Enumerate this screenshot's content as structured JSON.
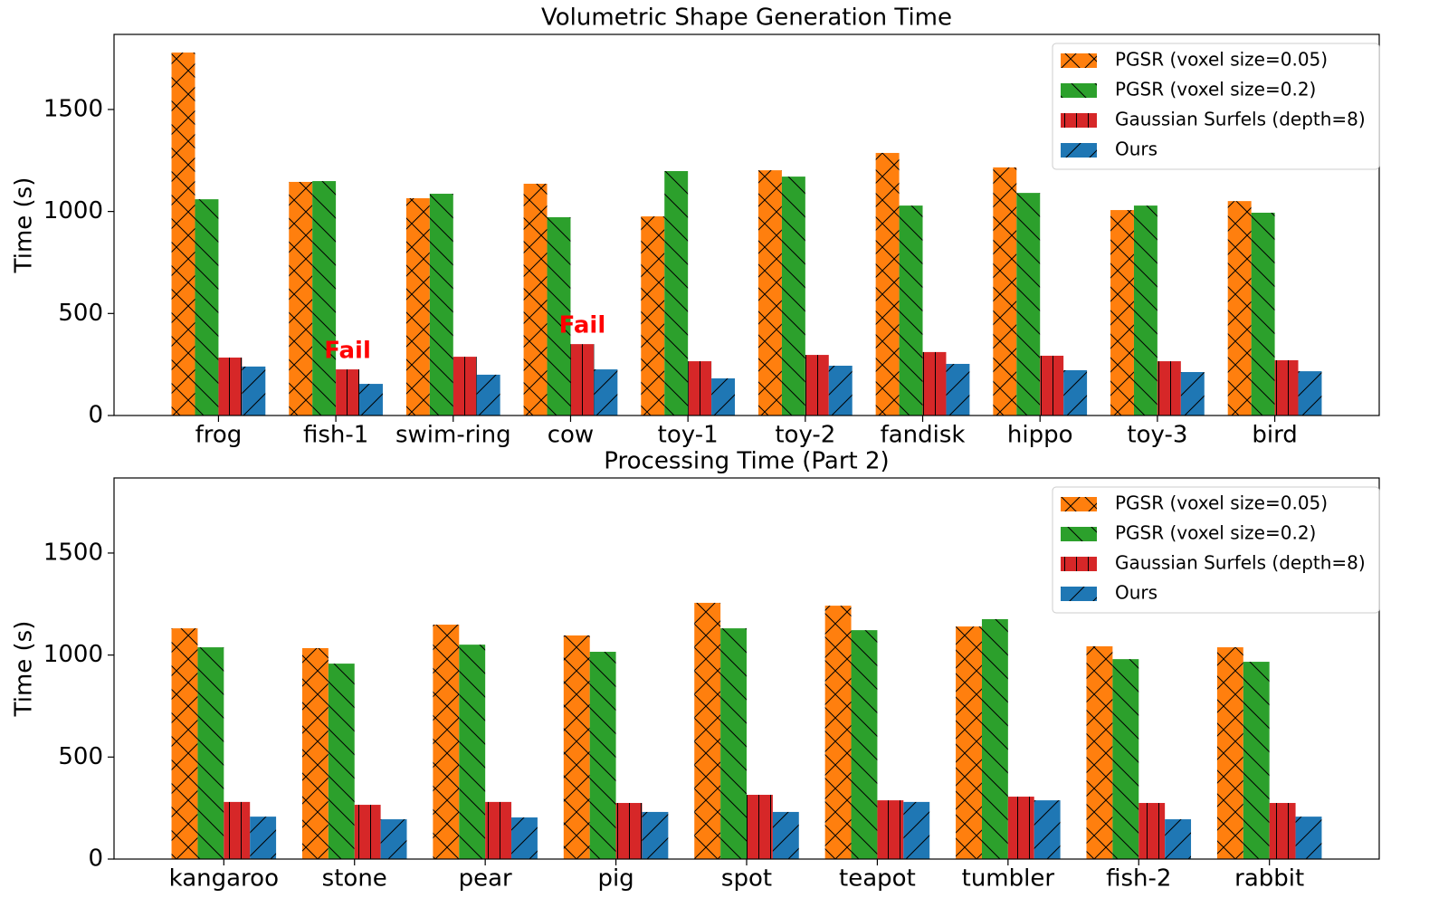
{
  "chart_data": [
    {
      "type": "bar",
      "title": "Volumetric Shape Generation Time",
      "y_label": "Time (s)",
      "categories": [
        "frog",
        "fish-1",
        "swim-ring",
        "cow",
        "toy-1",
        "toy-2",
        "fandisk",
        "hippo",
        "toy-3",
        "bird"
      ],
      "series": [
        {
          "name": "PGSR (voxel size=0.05)",
          "color": "#ff7f0e",
          "hatch": "x",
          "values": [
            1779,
            1145,
            1065,
            1136,
            976,
            1202,
            1287,
            1216,
            1007,
            1051
          ]
        },
        {
          "name": "PGSR (voxel size=0.2)",
          "color": "#2ca02c",
          "hatch": "\\",
          "values": [
            1060,
            1149,
            1087,
            972,
            1198,
            1171,
            1029,
            1091,
            1029,
            994
          ]
        },
        {
          "name": "Gaussian Surfels (depth=8)",
          "color": "#d62728",
          "hatch": "|",
          "values": [
            284,
            226,
            288,
            350,
            266,
            297,
            311,
            293,
            266,
            271
          ]
        },
        {
          "name": "Ours",
          "color": "#1f77b4",
          "hatch": "/",
          "values": [
            240,
            155,
            200,
            226,
            182,
            244,
            253,
            222,
            213,
            217
          ]
        }
      ],
      "annotations": [
        {
          "text": "Fail",
          "x": "fish-1",
          "series": "Gaussian Surfels (depth=8)",
          "color": "#ff0000"
        },
        {
          "text": "Fail",
          "x": "cow",
          "series": "Gaussian Surfels (depth=8)",
          "color": "#ff0000"
        }
      ],
      "ylim": [
        0,
        1868
      ],
      "yticks": [
        0,
        500,
        1000,
        1500
      ],
      "legend": "upper right"
    },
    {
      "type": "bar",
      "title": "Processing Time (Part 2)",
      "y_label": "Time (s)",
      "categories": [
        "kangaroo",
        "stone",
        "pear",
        "pig",
        "spot",
        "teapot",
        "tumbler",
        "fish-2",
        "rabbit"
      ],
      "series": [
        {
          "name": "PGSR (voxel size=0.05)",
          "color": "#ff7f0e",
          "hatch": "x",
          "values": [
            1131,
            1034,
            1149,
            1096,
            1256,
            1242,
            1140,
            1043,
            1038
          ]
        },
        {
          "name": "PGSR (voxel size=0.2)",
          "color": "#2ca02c",
          "hatch": "\\",
          "values": [
            1038,
            958,
            1051,
            1016,
            1131,
            1122,
            1176,
            980,
            967
          ]
        },
        {
          "name": "Gaussian Surfels (depth=8)",
          "color": "#d62728",
          "hatch": "|",
          "values": [
            280,
            266,
            280,
            275,
            315,
            288,
            306,
            275,
            275
          ]
        },
        {
          "name": "Ours",
          "color": "#1f77b4",
          "hatch": "/",
          "values": [
            208,
            195,
            204,
            231,
            231,
            280,
            288,
            195,
            208
          ]
        }
      ],
      "ylim": [
        0,
        1868
      ],
      "yticks": [
        0,
        500,
        1000,
        1500
      ],
      "legend": "upper right"
    }
  ]
}
